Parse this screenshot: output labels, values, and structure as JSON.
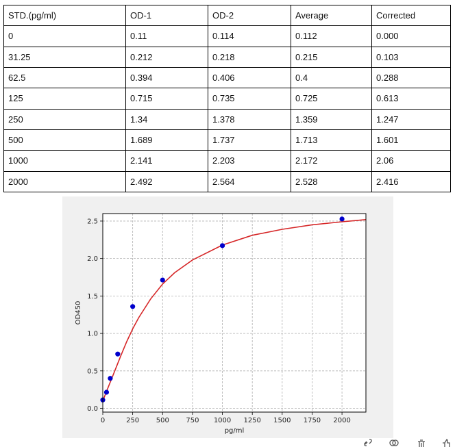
{
  "table": {
    "headers": [
      "STD.(pg/ml)",
      "OD-1",
      "OD-2",
      "Average",
      "Corrected"
    ],
    "rows": [
      [
        "0",
        "0.11",
        "0.114",
        "0.112",
        "0.000"
      ],
      [
        "31.25",
        "0.212",
        "0.218",
        "0.215",
        "0.103"
      ],
      [
        "62.5",
        "0.394",
        "0.406",
        "0.4",
        "0.288"
      ],
      [
        "125",
        "0.715",
        "0.735",
        "0.725",
        "0.613"
      ],
      [
        "250",
        "1.34",
        "1.378",
        "1.359",
        "1.247"
      ],
      [
        "500",
        "1.689",
        "1.737",
        "1.713",
        "1.601"
      ],
      [
        "1000",
        "2.141",
        "2.203",
        "2.172",
        "2.06"
      ],
      [
        "2000",
        "2.492",
        "2.564",
        "2.528",
        "2.416"
      ]
    ]
  },
  "chart_data": {
    "type": "scatter",
    "title": "",
    "xlabel": "pg/ml",
    "ylabel": "OD450",
    "xlim": [
      0,
      2200
    ],
    "ylim": [
      -0.05,
      2.6
    ],
    "x_ticks": [
      0,
      250,
      500,
      750,
      1000,
      1250,
      1500,
      1750,
      2000
    ],
    "y_ticks": [
      0.0,
      0.5,
      1.0,
      1.5,
      2.0,
      2.5
    ],
    "x_tick_labels": [
      "0",
      "250",
      "500",
      "750",
      "1000",
      "1250",
      "1500",
      "1750",
      "2000"
    ],
    "y_tick_labels": [
      "0.0",
      "0.5",
      "1.0",
      "1.5",
      "2.0",
      "2.5"
    ],
    "grid": true,
    "points": {
      "x": [
        0,
        31.25,
        62.5,
        125,
        250,
        500,
        1000,
        2000
      ],
      "y": [
        0.112,
        0.215,
        0.4,
        0.725,
        1.359,
        1.713,
        2.172,
        2.528
      ],
      "color": "#0000cc"
    },
    "fit_curve": {
      "color": "#d62728",
      "x": [
        0,
        25,
        50,
        75,
        100,
        150,
        200,
        250,
        300,
        400,
        500,
        600,
        750,
        1000,
        1250,
        1500,
        1750,
        2000,
        2200
      ],
      "y": [
        0.1,
        0.2,
        0.3,
        0.4,
        0.5,
        0.7,
        0.89,
        1.06,
        1.21,
        1.46,
        1.66,
        1.81,
        1.98,
        2.18,
        2.31,
        2.39,
        2.45,
        2.49,
        2.52
      ]
    }
  },
  "toolbar": {
    "icons": [
      "link-icon",
      "copy-icon",
      "delete-icon",
      "thumbs-up-icon"
    ],
    "accent": "#555555"
  }
}
